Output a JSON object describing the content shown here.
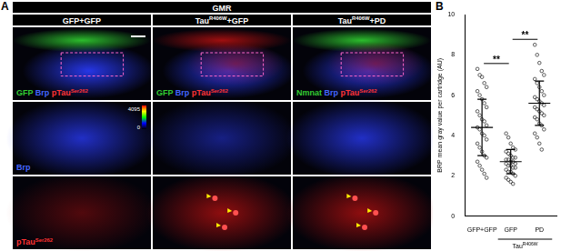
{
  "panel_a": {
    "label": "A",
    "header": "GMR",
    "columns": [
      {
        "title": [
          {
            "text": "GFP+GFP"
          }
        ],
        "merge": [
          {
            "text": "GFP",
            "color": "#33cc33"
          },
          {
            "text": " Brp",
            "color": "#4466ff"
          },
          {
            "text": " pTau",
            "sup": "Ser262",
            "color": "#ff3333"
          }
        ]
      },
      {
        "title": [
          {
            "text": "Tau",
            "sup": "R406W"
          },
          {
            "text": "+GFP"
          }
        ],
        "merge": [
          {
            "text": "GFP",
            "color": "#33cc33"
          },
          {
            "text": " Brp",
            "color": "#4466ff"
          },
          {
            "text": " pTau",
            "sup": "Ser262",
            "color": "#ff3333"
          }
        ]
      },
      {
        "title": [
          {
            "text": "Tau",
            "sup": "R406W"
          },
          {
            "text": "+PD"
          }
        ],
        "merge": [
          {
            "text": "Nmnat",
            "color": "#33cc33"
          },
          {
            "text": " Brp",
            "color": "#4466ff"
          },
          {
            "text": " pTau",
            "sup": "Ser262",
            "color": "#ff3333"
          }
        ]
      }
    ],
    "rows": [
      {
        "label": [
          {
            "text": "Brp",
            "color": "#4466ff"
          }
        ]
      },
      {
        "label": [
          {
            "text": "pTau",
            "sup": "Ser262",
            "color": "#ff3333"
          }
        ]
      }
    ],
    "colorbar": {
      "labels": [
        4095,
        0
      ]
    }
  },
  "chart_data": {
    "type": "scatter",
    "label": "B",
    "y_label": "BRP mean gray value per cartridge (AU)",
    "categories": [
      "GFP+GFP",
      "GFP",
      "PD"
    ],
    "group_label": {
      "text": "Tau",
      "sup": "R406W",
      "categories": [
        1,
        2
      ]
    },
    "points": [
      [
        7.3,
        7.0,
        6.9,
        6.6,
        6.4,
        6.2,
        6.0,
        5.8,
        5.6,
        5.4,
        5.2,
        5.0,
        4.8,
        4.7,
        4.5,
        4.4,
        4.3,
        4.1,
        4.0,
        3.8,
        3.6,
        3.4,
        3.2,
        3.0,
        2.9,
        2.7,
        2.5,
        2.3,
        2.1,
        1.9
      ],
      [
        4.1,
        3.9,
        3.6,
        3.4,
        3.3,
        3.2,
        3.1,
        3.0,
        2.9,
        2.9,
        2.8,
        2.8,
        2.7,
        2.7,
        2.6,
        2.6,
        2.5,
        2.5,
        2.4,
        2.4,
        2.3,
        2.2,
        2.2,
        2.1,
        2.0,
        1.9,
        1.8,
        1.7,
        1.6
      ],
      [
        8.5,
        8.0,
        7.6,
        7.2,
        7.0,
        6.8,
        6.6,
        6.4,
        6.2,
        6.0,
        5.9,
        5.8,
        5.7,
        5.6,
        5.5,
        5.4,
        5.3,
        5.2,
        5.1,
        5.0,
        4.9,
        4.8,
        4.6,
        4.5,
        4.3,
        4.1,
        3.9,
        3.6,
        3.3
      ]
    ],
    "mean": [
      4.4,
      2.7,
      5.6
    ],
    "sd": [
      1.4,
      0.6,
      1.1
    ],
    "significance": [
      {
        "from": 0,
        "to": 1,
        "label": "**"
      },
      {
        "from": 1,
        "to": 2,
        "label": "**"
      }
    ],
    "color": "#333333",
    "marker": "open_circle",
    "ylim": [
      0,
      10
    ],
    "yticks": [
      0,
      2,
      4,
      6,
      8,
      10
    ],
    "grid": false
  }
}
